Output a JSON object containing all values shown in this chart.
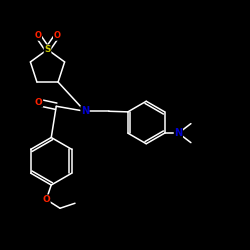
{
  "background_color": "#000000",
  "bond_color": "#ffffff",
  "atom_colors": {
    "N": "#0000cd",
    "O": "#ff2200",
    "S": "#cccc00",
    "C": "#ffffff"
  },
  "figsize": [
    2.5,
    2.5
  ],
  "dpi": 100,
  "lw": 1.1,
  "font_size": 6.5
}
